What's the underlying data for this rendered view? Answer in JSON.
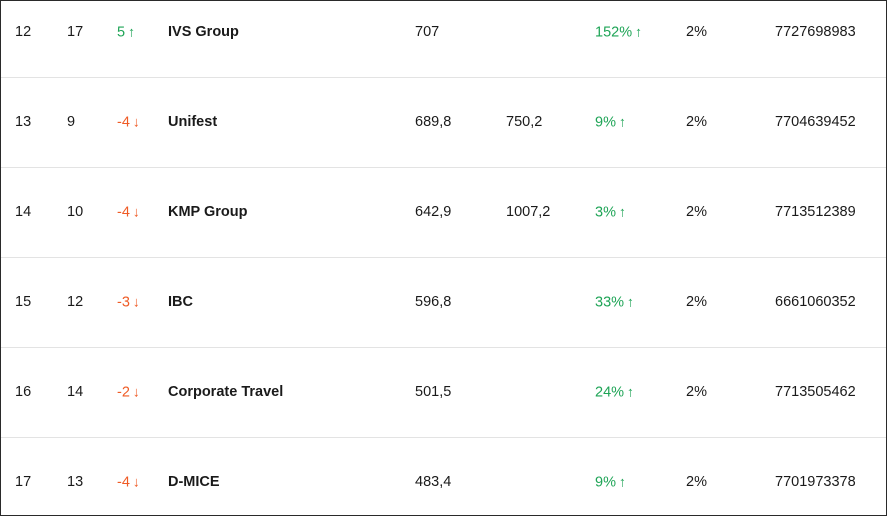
{
  "colors": {
    "positive": "#1ea456",
    "negative": "#ef5b25",
    "text": "#1a1a1a",
    "divider": "#e3e3e3"
  },
  "icons": {
    "up": "arrow-up-icon",
    "down": "arrow-down-icon"
  },
  "rows": [
    {
      "rank": "12",
      "prev_rank": "17",
      "change": "5",
      "change_dir": "up",
      "company": "IVS Group",
      "value1": "707",
      "value2": "",
      "growth": "152%",
      "share": "2%",
      "inn": "7727698983"
    },
    {
      "rank": "13",
      "prev_rank": "9",
      "change": "-4",
      "change_dir": "down",
      "company": "Unifest",
      "value1": "689,8",
      "value2": "750,2",
      "growth": "9%",
      "share": "2%",
      "inn": "7704639452"
    },
    {
      "rank": "14",
      "prev_rank": "10",
      "change": "-4",
      "change_dir": "down",
      "company": "KMP Group",
      "value1": "642,9",
      "value2": "1007,2",
      "growth": "3%",
      "share": "2%",
      "inn": "7713512389"
    },
    {
      "rank": "15",
      "prev_rank": "12",
      "change": "-3",
      "change_dir": "down",
      "company": "IBC",
      "value1": "596,8",
      "value2": "",
      "growth": "33%",
      "share": "2%",
      "inn": "6661060352"
    },
    {
      "rank": "16",
      "prev_rank": "14",
      "change": "-2",
      "change_dir": "down",
      "company": "Corporate Travel",
      "value1": "501,5",
      "value2": "",
      "growth": "24%",
      "share": "2%",
      "inn": "7713505462"
    },
    {
      "rank": "17",
      "prev_rank": "13",
      "change": "-4",
      "change_dir": "down",
      "company": "D-MICE",
      "value1": "483,4",
      "value2": "",
      "growth": "9%",
      "share": "2%",
      "inn": "7701973378"
    }
  ]
}
